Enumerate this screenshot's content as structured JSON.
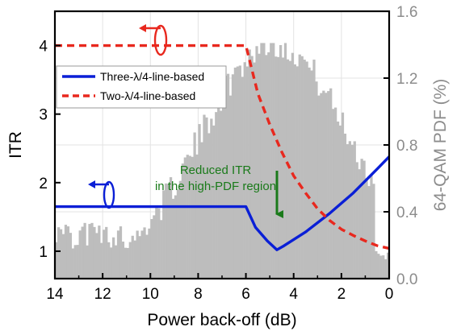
{
  "chart_data": {
    "type": "line",
    "x_axis": {
      "label": "Power back-off (dB)",
      "range": [
        14,
        0
      ],
      "reversed": true,
      "ticks": [
        14,
        12,
        10,
        8,
        6,
        4,
        2,
        0
      ]
    },
    "y_left": {
      "label": "ITR",
      "range": [
        0.6,
        4.5
      ],
      "ticks": [
        1,
        2,
        3,
        4
      ]
    },
    "y_right": {
      "label": "64-QAM PDF (%)",
      "range": [
        0.0,
        1.6
      ],
      "ticks": [
        "0.0",
        "0.4",
        "0.8",
        "1.2",
        "1.6"
      ],
      "color": "#8c8c8c"
    },
    "series": [
      {
        "name": "Three-λ/4-line-based",
        "axis": "left",
        "color": "#0a1fd6",
        "style": "solid",
        "points": [
          [
            14,
            1.65
          ],
          [
            6,
            1.65
          ],
          [
            5.6,
            1.35
          ],
          [
            5.1,
            1.15
          ],
          [
            4.7,
            1.02
          ],
          [
            4.4,
            1.08
          ],
          [
            3.5,
            1.28
          ],
          [
            2.5,
            1.55
          ],
          [
            1.5,
            1.85
          ],
          [
            0.5,
            2.2
          ],
          [
            0,
            2.38
          ]
        ]
      },
      {
        "name": "Two-λ/4-line-based",
        "axis": "left",
        "color": "#e8281e",
        "style": "dashed",
        "points": [
          [
            14,
            4.0
          ],
          [
            6,
            4.0
          ],
          [
            5.5,
            3.3
          ],
          [
            5.0,
            2.85
          ],
          [
            4.5,
            2.45
          ],
          [
            4.0,
            2.1
          ],
          [
            3.5,
            1.85
          ],
          [
            3.0,
            1.62
          ],
          [
            2.5,
            1.45
          ],
          [
            2.0,
            1.32
          ],
          [
            1.5,
            1.23
          ],
          [
            1.0,
            1.15
          ],
          [
            0.5,
            1.08
          ],
          [
            0,
            1.04
          ]
        ]
      }
    ],
    "pdf_histogram": {
      "axis": "right",
      "color": "#bdbdbd",
      "bin_width_db": 0.1,
      "peak_center_db": 4.8,
      "peak_value": 1.41,
      "spread_db": 3.1,
      "noise_amplitude": 0.09
    },
    "legend": {
      "placement": "top-left",
      "entries": [
        "Three-λ/4-line-based",
        "Two-λ/4-line-based"
      ]
    },
    "annotations": {
      "reduced_itr": {
        "lines": [
          "Reduced ITR",
          "in the high-PDF region"
        ],
        "color": "#1a7a1a",
        "arrow_target_x_db": 4.7
      },
      "axis_pointer_left_series": "Three-λ/4-line-based",
      "axis_pointer_right_series": "Two-λ/4-line-based"
    },
    "grid": true
  }
}
